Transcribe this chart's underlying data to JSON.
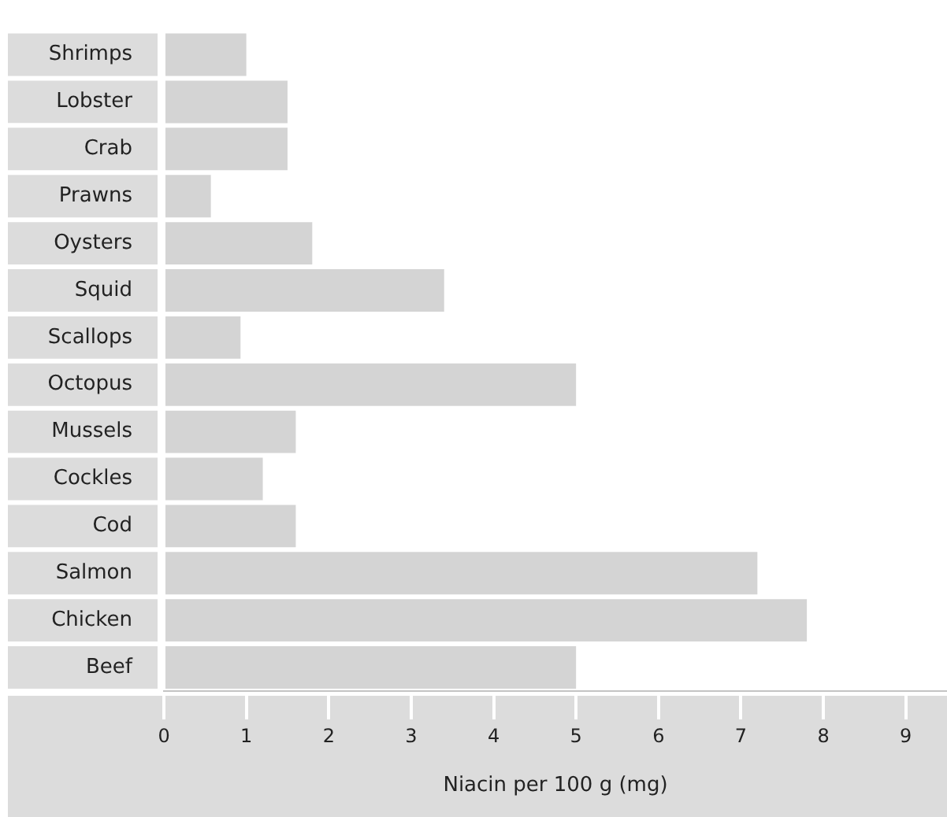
{
  "chart_data": {
    "type": "bar",
    "orientation": "horizontal",
    "xlabel": "Niacin per 100 g (mg)",
    "categories": [
      "Shrimps",
      "Lobster",
      "Crab",
      "Prawns",
      "Oysters",
      "Squid",
      "Scallops",
      "Octopus",
      "Mussels",
      "Cockles",
      "Cod",
      "Salmon",
      "Chicken",
      "Beef"
    ],
    "values": [
      1.0,
      1.5,
      1.5,
      0.57,
      1.8,
      3.4,
      0.93,
      5.0,
      1.6,
      1.2,
      1.6,
      7.2,
      7.8,
      5.0
    ],
    "color": "#d4d4d4",
    "xlim": [
      0,
      9.5
    ],
    "xticks": [
      0,
      1,
      2,
      3,
      4,
      5,
      6,
      7,
      8,
      9
    ],
    "legend": false
  }
}
